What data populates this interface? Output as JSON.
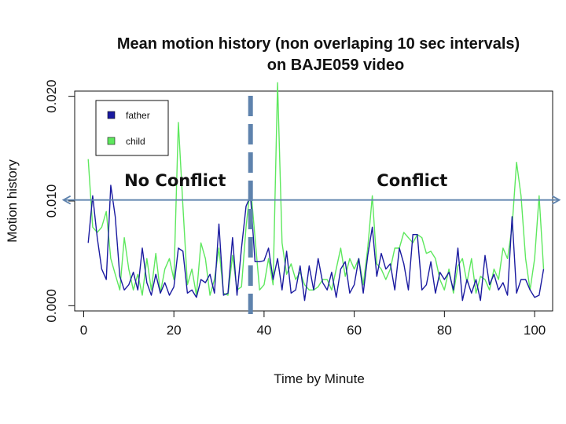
{
  "chart_data": {
    "type": "line",
    "title_line1": "Mean motion history (non overlaping 10 sec intervals)",
    "title_line2": "on BAJE059 video",
    "xlabel": "Time by Minute",
    "ylabel": "Motion history",
    "xlim": [
      -2,
      104
    ],
    "ylim": [
      -0.0005,
      0.0205
    ],
    "xticks": [
      0,
      20,
      40,
      60,
      80,
      100
    ],
    "xtick_labels": [
      "0",
      "20",
      "40",
      "60",
      "80",
      "100"
    ],
    "yticks": [
      0.0,
      0.01,
      0.02
    ],
    "ytick_labels": [
      "0.000",
      "0.010",
      "0.020"
    ],
    "grid": false,
    "legend_position": "top-left",
    "x": [
      1,
      2,
      3,
      4,
      5,
      6,
      7,
      8,
      9,
      10,
      11,
      12,
      13,
      14,
      15,
      16,
      17,
      18,
      19,
      20,
      21,
      22,
      23,
      24,
      25,
      26,
      27,
      28,
      29,
      30,
      31,
      32,
      33,
      34,
      35,
      36,
      37,
      38,
      39,
      40,
      41,
      42,
      43,
      44,
      45,
      46,
      47,
      48,
      49,
      50,
      51,
      52,
      53,
      54,
      55,
      56,
      57,
      58,
      59,
      60,
      61,
      62,
      63,
      64,
      65,
      66,
      67,
      68,
      69,
      70,
      71,
      72,
      73,
      74,
      75,
      76,
      77,
      78,
      79,
      80,
      81,
      82,
      83,
      84,
      85,
      86,
      87,
      88,
      89,
      90,
      91,
      92,
      93,
      94,
      95,
      96,
      97,
      98,
      99,
      100,
      101,
      102
    ],
    "series": [
      {
        "name": "father",
        "color": "#1a1aa0",
        "values": [
          0.006,
          0.0105,
          0.0065,
          0.0035,
          0.0025,
          0.0115,
          0.0085,
          0.0028,
          0.0015,
          0.002,
          0.0032,
          0.0015,
          0.0055,
          0.0022,
          0.001,
          0.003,
          0.0012,
          0.0022,
          0.001,
          0.0018,
          0.0055,
          0.0052,
          0.0012,
          0.0015,
          0.0008,
          0.0025,
          0.0022,
          0.003,
          0.0012,
          0.0078,
          0.001,
          0.0012,
          0.0065,
          0.001,
          0.0055,
          0.0095,
          0.0105,
          0.0042,
          0.0042,
          0.0043,
          0.0055,
          0.0025,
          0.0045,
          0.0015,
          0.0052,
          0.0012,
          0.0015,
          0.0038,
          0.0005,
          0.0038,
          0.0015,
          0.0045,
          0.0022,
          0.0015,
          0.0032,
          0.0008,
          0.0035,
          0.0042,
          0.0012,
          0.002,
          0.0045,
          0.0012,
          0.0048,
          0.0075,
          0.0028,
          0.005,
          0.0035,
          0.004,
          0.0015,
          0.0055,
          0.004,
          0.0015,
          0.0068,
          0.0068,
          0.0015,
          0.002,
          0.0042,
          0.0012,
          0.0032,
          0.0025,
          0.0032,
          0.0015,
          0.0055,
          0.0005,
          0.0025,
          0.0012,
          0.0025,
          0.0005,
          0.0048,
          0.002,
          0.003,
          0.0015,
          0.0022,
          0.001,
          0.0085,
          0.0012,
          0.0025,
          0.0025,
          0.0015,
          0.0008,
          0.001,
          0.0035
        ]
      },
      {
        "name": "child",
        "color": "#5ee85e",
        "values": [
          0.014,
          0.0075,
          0.007,
          0.0075,
          0.009,
          0.0045,
          0.003,
          0.0015,
          0.0065,
          0.0035,
          0.0015,
          0.003,
          0.001,
          0.0045,
          0.0015,
          0.005,
          0.0012,
          0.0035,
          0.0045,
          0.0025,
          0.0175,
          0.0095,
          0.002,
          0.0035,
          0.001,
          0.006,
          0.0045,
          0.001,
          0.0025,
          0.0055,
          0.0012,
          0.001,
          0.0048,
          0.0015,
          0.0018,
          0.0075,
          0.0115,
          0.0065,
          0.0015,
          0.002,
          0.0045,
          0.002,
          0.0213,
          0.006,
          0.003,
          0.004,
          0.0025,
          0.0032,
          0.002,
          0.0015,
          0.0015,
          0.0018,
          0.0025,
          0.0025,
          0.0015,
          0.0035,
          0.0055,
          0.0028,
          0.0045,
          0.0035,
          0.0045,
          0.002,
          0.0055,
          0.0105,
          0.004,
          0.0035,
          0.0025,
          0.0035,
          0.0055,
          0.0055,
          0.007,
          0.0065,
          0.006,
          0.0068,
          0.0065,
          0.005,
          0.0052,
          0.0045,
          0.0025,
          0.0015,
          0.0035,
          0.0012,
          0.0038,
          0.0045,
          0.0022,
          0.0045,
          0.0012,
          0.0028,
          0.0025,
          0.0015,
          0.0035,
          0.0025,
          0.0055,
          0.0045,
          0.0075,
          0.0137,
          0.0105,
          0.0045,
          0.0015,
          0.0045,
          0.0105,
          0.0035
        ]
      }
    ],
    "divider_x": 37,
    "annotations": [
      {
        "text": "No Conflict",
        "x": 9
      },
      {
        "text": "Conflict",
        "x": 65
      }
    ],
    "arrows": [
      {
        "from": 36.5,
        "to": -4.5,
        "y": 0.0101,
        "color": "#5f83ad"
      },
      {
        "from": 37.5,
        "to": 105.5,
        "y": 0.0101,
        "color": "#5f83ad"
      }
    ],
    "divider_color": "#5f83ad"
  }
}
